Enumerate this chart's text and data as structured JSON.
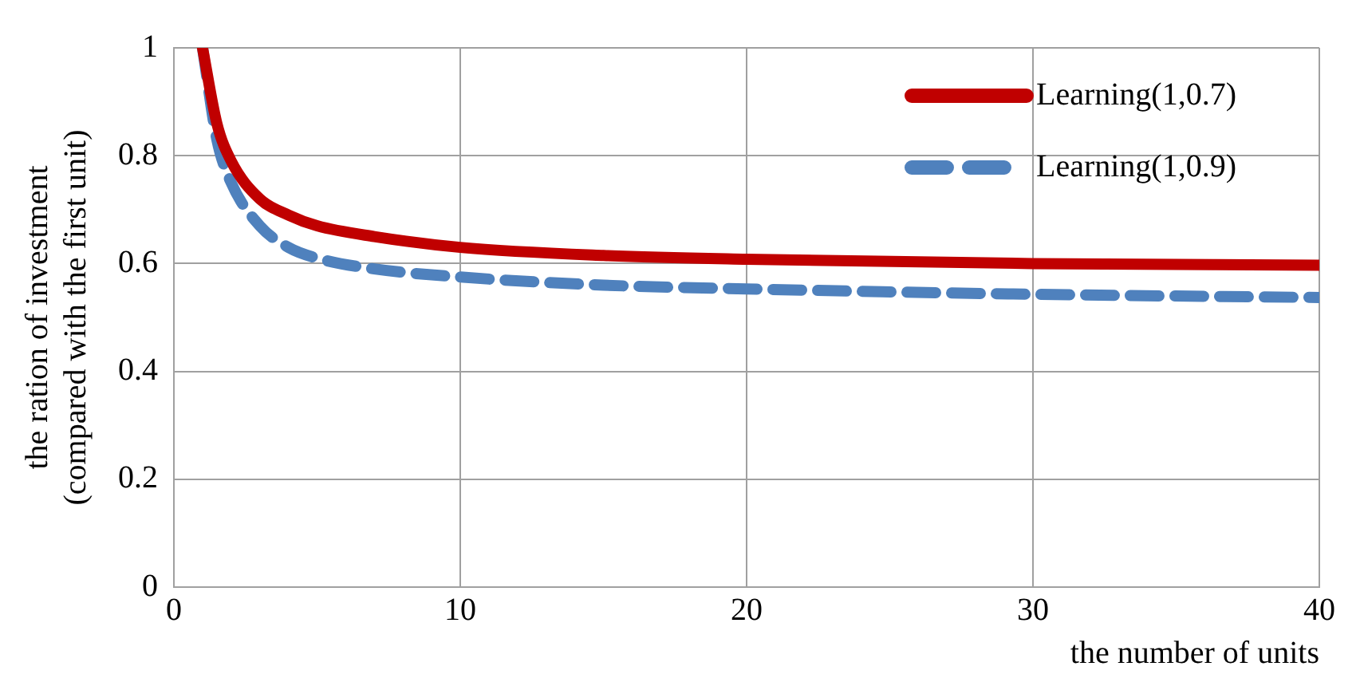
{
  "chart_data": {
    "type": "line",
    "xlabel": "the number of units",
    "ylabel": "the ration of investment\n(compared with the first unit)",
    "xlim": [
      0,
      40
    ],
    "xticks": [
      0,
      10,
      20,
      30,
      40
    ],
    "ylim": [
      0,
      1
    ],
    "yticks": [
      0,
      0.2,
      0.4,
      0.6,
      0.8,
      1
    ],
    "grid": true,
    "legend": "top right",
    "marker": "none",
    "series": [
      {
        "name": "Learning(1,0.7)",
        "color": "#c00000",
        "line_style": "solid",
        "x": [
          1,
          1.5,
          2,
          3,
          4,
          5,
          7,
          10,
          15,
          20,
          30,
          40
        ],
        "values": [
          1,
          0.86,
          0.79,
          0.72,
          0.69,
          0.67,
          0.65,
          0.63,
          0.615,
          0.608,
          0.6,
          0.597
        ]
      },
      {
        "name": "Learning(1,0.9)",
        "color": "#4f81bd",
        "line_style": "dashed",
        "x": [
          1,
          1.5,
          2,
          3,
          4,
          5,
          7,
          10,
          15,
          20,
          30,
          40
        ],
        "values": [
          1,
          0.83,
          0.75,
          0.67,
          0.63,
          0.61,
          0.59,
          0.575,
          0.56,
          0.553,
          0.543,
          0.537
        ]
      }
    ]
  }
}
